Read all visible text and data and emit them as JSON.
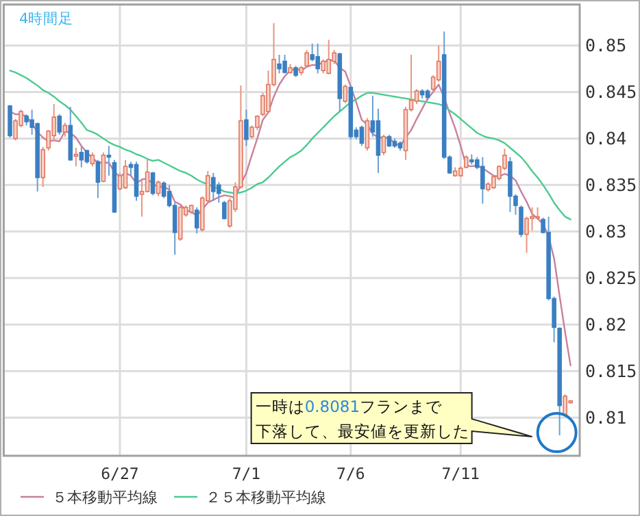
{
  "chart_data": {
    "type": "candlestick",
    "title": "4時間足",
    "categories": [
      null,
      null,
      null,
      null,
      null,
      null,
      null,
      null,
      null,
      null,
      null,
      null,
      null,
      null,
      null,
      null,
      null,
      null,
      null,
      null,
      "6/27",
      null,
      null,
      null,
      null,
      null,
      null,
      null,
      null,
      null,
      null,
      null,
      null,
      null,
      null,
      null,
      null,
      null,
      null,
      null,
      null,
      null,
      null,
      "7/1",
      null,
      null,
      null,
      null,
      null,
      null,
      null,
      null,
      null,
      null,
      null,
      null,
      null,
      null,
      null,
      null,
      null,
      null,
      "7/6",
      null,
      null,
      null,
      null,
      null,
      null,
      null,
      null,
      null,
      null,
      null,
      null,
      null,
      null,
      null,
      null,
      null,
      null,
      null,
      "7/11",
      null,
      null,
      null,
      null,
      null,
      null,
      null,
      null,
      null,
      null,
      null,
      null,
      null,
      null,
      null,
      null,
      null,
      null,
      null,
      null
    ],
    "ohlc": [
      [
        0.8435,
        0.8436,
        0.8401,
        0.8403
      ],
      [
        0.84,
        0.8421,
        0.8398,
        0.8419
      ],
      [
        0.8414,
        0.8431,
        0.8412,
        0.8429
      ],
      [
        0.8424,
        0.8426,
        0.8414,
        0.8418
      ],
      [
        0.842,
        0.8431,
        0.8404,
        0.8412
      ],
      [
        0.8416,
        0.8417,
        0.8343,
        0.8358
      ],
      [
        0.8358,
        0.8391,
        0.8348,
        0.8388
      ],
      [
        0.839,
        0.8409,
        0.8387,
        0.8408
      ],
      [
        0.8403,
        0.8437,
        0.8397,
        0.8423
      ],
      [
        0.8424,
        0.8426,
        0.8404,
        0.8407
      ],
      [
        0.8407,
        0.8417,
        0.8402,
        0.8414
      ],
      [
        0.8414,
        0.8434,
        0.8376,
        0.8377
      ],
      [
        0.8381,
        0.839,
        0.837,
        0.8383
      ],
      [
        0.8385,
        0.8391,
        0.8369,
        0.8377
      ],
      [
        0.8387,
        0.8388,
        0.8373,
        0.8375
      ],
      [
        0.8373,
        0.8385,
        0.837,
        0.8382
      ],
      [
        0.8375,
        0.8377,
        0.8336,
        0.8353
      ],
      [
        0.8354,
        0.8385,
        0.8353,
        0.8382
      ],
      [
        0.8382,
        0.8392,
        0.836,
        0.838
      ],
      [
        0.8374,
        0.8377,
        0.832,
        0.8321
      ],
      [
        0.8346,
        0.8363,
        0.8344,
        0.836
      ],
      [
        0.8347,
        0.8377,
        0.8346,
        0.837
      ],
      [
        0.8372,
        0.8375,
        0.836,
        0.8369
      ],
      [
        0.8372,
        0.8375,
        0.8333,
        0.8338
      ],
      [
        0.834,
        0.8355,
        0.8316,
        0.8343
      ],
      [
        0.8343,
        0.8377,
        0.8342,
        0.8364
      ],
      [
        0.8363,
        0.8364,
        0.8339,
        0.8341
      ],
      [
        0.8341,
        0.8355,
        0.8338,
        0.8353
      ],
      [
        0.8352,
        0.8354,
        0.8336,
        0.8338
      ],
      [
        0.8343,
        0.835,
        0.8326,
        0.8328
      ],
      [
        0.8328,
        0.8331,
        0.8275,
        0.8299
      ],
      [
        0.8292,
        0.8328,
        0.829,
        0.8326
      ],
      [
        0.8318,
        0.8328,
        0.8316,
        0.8326
      ],
      [
        0.8321,
        0.8329,
        0.8319,
        0.8328
      ],
      [
        0.8323,
        0.8326,
        0.8298,
        0.8304
      ],
      [
        0.8302,
        0.8338,
        0.83,
        0.8336
      ],
      [
        0.8333,
        0.8365,
        0.8331,
        0.836
      ],
      [
        0.8358,
        0.8363,
        0.8333,
        0.8343
      ],
      [
        0.835,
        0.8353,
        0.8331,
        0.8341
      ],
      [
        0.8331,
        0.8333,
        0.8313,
        0.8314
      ],
      [
        0.8306,
        0.8336,
        0.8304,
        0.8333
      ],
      [
        0.8324,
        0.8353,
        0.8321,
        0.8348
      ],
      [
        0.8348,
        0.8457,
        0.8346,
        0.8419
      ],
      [
        0.842,
        0.8431,
        0.8392,
        0.8399
      ],
      [
        0.8402,
        0.8414,
        0.84,
        0.8412
      ],
      [
        0.8412,
        0.8425,
        0.8409,
        0.8424
      ],
      [
        0.8426,
        0.8449,
        0.8424,
        0.8446
      ],
      [
        0.8429,
        0.8473,
        0.8427,
        0.8458
      ],
      [
        0.8458,
        0.8524,
        0.8456,
        0.8485
      ],
      [
        0.848,
        0.849,
        0.847,
        0.8475
      ],
      [
        0.8483,
        0.849,
        0.847,
        0.8471
      ],
      [
        0.8471,
        0.848,
        0.847,
        0.8476
      ],
      [
        0.8476,
        0.8478,
        0.8466,
        0.8468
      ],
      [
        0.8471,
        0.8478,
        0.8468,
        0.8476
      ],
      [
        0.8478,
        0.8495,
        0.8476,
        0.8492
      ],
      [
        0.849,
        0.8502,
        0.8483,
        0.8485
      ],
      [
        0.8488,
        0.8502,
        0.847,
        0.8475
      ],
      [
        0.8473,
        0.8485,
        0.847,
        0.8483
      ],
      [
        0.847,
        0.8506,
        0.8469,
        0.8485
      ],
      [
        0.8483,
        0.8495,
        0.848,
        0.8492
      ],
      [
        0.8491,
        0.8492,
        0.8429,
        0.8443
      ],
      [
        0.844,
        0.8458,
        0.8438,
        0.8456
      ],
      [
        0.8455,
        0.8457,
        0.8399,
        0.8402
      ],
      [
        0.8409,
        0.8412,
        0.8399,
        0.8402
      ],
      [
        0.8412,
        0.8414,
        0.8392,
        0.8395
      ],
      [
        0.839,
        0.8422,
        0.8387,
        0.8419
      ],
      [
        0.8419,
        0.8446,
        0.8402,
        0.8407
      ],
      [
        0.8419,
        0.8432,
        0.8363,
        0.8382
      ],
      [
        0.8385,
        0.8404,
        0.8382,
        0.8402
      ],
      [
        0.8402,
        0.8404,
        0.8391,
        0.8392
      ],
      [
        0.8397,
        0.84,
        0.839,
        0.8392
      ],
      [
        0.8395,
        0.8397,
        0.8387,
        0.839
      ],
      [
        0.8387,
        0.8434,
        0.8377,
        0.8431
      ],
      [
        0.8431,
        0.849,
        0.8429,
        0.8441
      ],
      [
        0.844,
        0.8453,
        0.8437,
        0.8451
      ],
      [
        0.8451,
        0.8453,
        0.8443,
        0.8447
      ],
      [
        0.8451,
        0.8453,
        0.8441,
        0.8444
      ],
      [
        0.8453,
        0.8468,
        0.8451,
        0.8466
      ],
      [
        0.8463,
        0.85,
        0.8461,
        0.8483
      ],
      [
        0.849,
        0.8515,
        0.8378,
        0.838
      ],
      [
        0.838,
        0.8382,
        0.8362,
        0.8363
      ],
      [
        0.836,
        0.8369,
        0.8359,
        0.8365
      ],
      [
        0.836,
        0.837,
        0.8359,
        0.8368
      ],
      [
        0.8369,
        0.8382,
        0.8368,
        0.838
      ],
      [
        0.8377,
        0.8383,
        0.8372,
        0.8375
      ],
      [
        0.8377,
        0.838,
        0.8367,
        0.8369
      ],
      [
        0.837,
        0.838,
        0.833,
        0.8346
      ],
      [
        0.8345,
        0.8353,
        0.8343,
        0.8351
      ],
      [
        0.8347,
        0.836,
        0.8346,
        0.8359
      ],
      [
        0.8357,
        0.8371,
        0.8355,
        0.837
      ],
      [
        0.8368,
        0.8389,
        0.8366,
        0.8382
      ],
      [
        0.8375,
        0.838,
        0.8321,
        0.8338
      ],
      [
        0.8338,
        0.834,
        0.8318,
        0.8328
      ],
      [
        0.8326,
        0.8328,
        0.8294,
        0.8297
      ],
      [
        0.8297,
        0.8316,
        0.8277,
        0.8314
      ],
      [
        0.8314,
        0.8326,
        0.8301,
        0.8316
      ],
      [
        0.8315,
        0.8326,
        0.8314,
        0.8316
      ],
      [
        0.8313,
        0.8315,
        0.8298,
        0.8299
      ],
      [
        0.8299,
        0.8316,
        0.8226,
        0.8228
      ],
      [
        0.8228,
        0.823,
        0.8181,
        0.8197
      ],
      [
        0.8196,
        0.8197,
        0.8081,
        0.8113
      ],
      [
        0.8103,
        0.8125,
        0.8101,
        0.8123
      ],
      [
        0.8116,
        0.8119,
        0.8115,
        0.8118
      ]
    ],
    "series": [
      {
        "type": "line",
        "name": "５本移動平均線",
        "color": "#c8809e",
        "values": [
          0.8429,
          0.8426,
          0.8426,
          0.8424,
          0.8416,
          0.8407,
          0.8401,
          0.8397,
          0.8398,
          0.8397,
          0.8408,
          0.8406,
          0.8401,
          0.8392,
          0.8385,
          0.8379,
          0.8374,
          0.8374,
          0.8374,
          0.8364,
          0.8359,
          0.8363,
          0.836,
          0.8352,
          0.8356,
          0.8357,
          0.8351,
          0.8348,
          0.8348,
          0.8345,
          0.8332,
          0.8329,
          0.8323,
          0.8321,
          0.8317,
          0.8324,
          0.8331,
          0.8334,
          0.8337,
          0.8339,
          0.8338,
          0.8336,
          0.8351,
          0.8363,
          0.8382,
          0.84,
          0.842,
          0.8428,
          0.8445,
          0.8458,
          0.8467,
          0.8473,
          0.8475,
          0.8473,
          0.8477,
          0.8479,
          0.8479,
          0.8482,
          0.8484,
          0.8484,
          0.8476,
          0.8472,
          0.8456,
          0.8439,
          0.842,
          0.8415,
          0.8405,
          0.8401,
          0.8401,
          0.84,
          0.8395,
          0.8392,
          0.8401,
          0.8409,
          0.8421,
          0.8432,
          0.8443,
          0.845,
          0.8458,
          0.8444,
          0.8427,
          0.8411,
          0.8392,
          0.8371,
          0.837,
          0.8371,
          0.8368,
          0.8364,
          0.836,
          0.8359,
          0.8362,
          0.836,
          0.8355,
          0.8343,
          0.8332,
          0.8319,
          0.8314,
          0.8308,
          0.8295,
          0.8271,
          0.8231,
          0.8192,
          0.8156
        ]
      },
      {
        "type": "line",
        "name": "２５本移動平均線",
        "color": "#4ccb8e",
        "values": [
          0.8473,
          0.8471,
          0.8468,
          0.8465,
          0.8461,
          0.8457,
          0.8452,
          0.8449,
          0.8445,
          0.844,
          0.8436,
          0.8431,
          0.8424,
          0.8417,
          0.8409,
          0.8407,
          0.8404,
          0.84,
          0.8396,
          0.8393,
          0.8391,
          0.8388,
          0.8386,
          0.8383,
          0.8381,
          0.8378,
          0.8376,
          0.8377,
          0.8374,
          0.8371,
          0.8368,
          0.8365,
          0.8363,
          0.836,
          0.8356,
          0.8353,
          0.8351,
          0.8348,
          0.8346,
          0.8343,
          0.8342,
          0.8341,
          0.8342,
          0.8344,
          0.8347,
          0.8351,
          0.8353,
          0.8358,
          0.8364,
          0.837,
          0.8375,
          0.838,
          0.8383,
          0.8387,
          0.8393,
          0.84,
          0.8406,
          0.8412,
          0.8418,
          0.8424,
          0.8429,
          0.8434,
          0.8439,
          0.8442,
          0.8446,
          0.8449,
          0.8449,
          0.8448,
          0.8447,
          0.8446,
          0.8445,
          0.8444,
          0.8443,
          0.8442,
          0.8441,
          0.844,
          0.8439,
          0.8438,
          0.8437,
          0.8435,
          0.843,
          0.8426,
          0.8421,
          0.8416,
          0.8411,
          0.8406,
          0.8403,
          0.8401,
          0.84,
          0.8398,
          0.8395,
          0.839,
          0.8385,
          0.838,
          0.8373,
          0.8365,
          0.8358,
          0.835,
          0.8341,
          0.8331,
          0.8323,
          0.8316,
          0.8313
        ]
      }
    ],
    "ylim": [
      0.8059,
      0.8544
    ],
    "yticks": [
      0.81,
      0.815,
      0.82,
      0.825,
      0.83,
      0.835,
      0.84,
      0.845,
      0.85
    ],
    "grid": true,
    "legend": "bottom left",
    "annotations": [
      "一時は0.8081フランまで",
      "下落して、最安値を更新した"
    ]
  }
}
